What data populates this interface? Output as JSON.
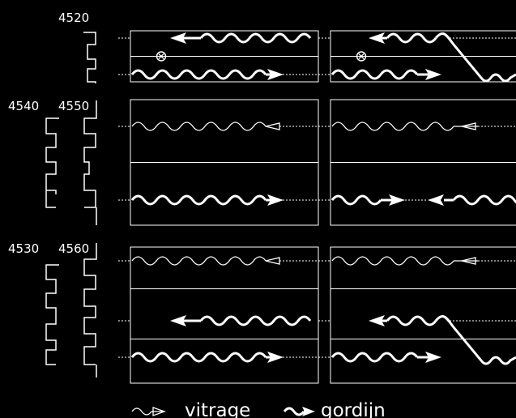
{
  "labels": {
    "rail_4520": "4520",
    "rail_4540": "4540",
    "rail_4550": "4550",
    "rail_4530": "4530",
    "rail_4560": "4560"
  },
  "legend": {
    "vitrage": "vitrage",
    "gordijn": "gordijn"
  },
  "colors": {
    "background": "#000000",
    "line": "#ffffff"
  },
  "icons": [
    "rail-profile-icon",
    "pulley-icon",
    "wave-arrow-thin-icon",
    "wave-arrow-thick-icon"
  ]
}
